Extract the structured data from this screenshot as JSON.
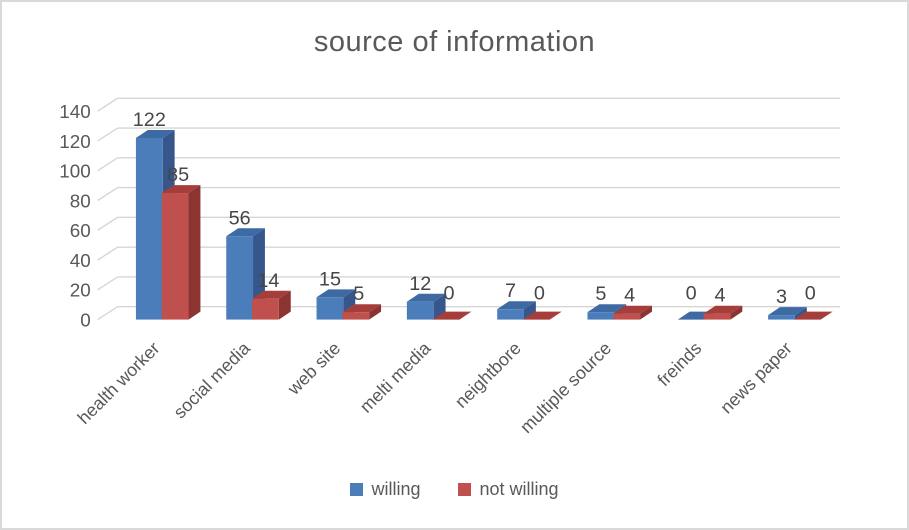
{
  "chart_data": {
    "type": "bar",
    "variant": "3d-clustered-column",
    "title": "source of information",
    "categories": [
      "health worker",
      "social media",
      "web site",
      "melti media",
      "neightbore",
      "multiple source",
      "freinds",
      "news paper"
    ],
    "series": [
      {
        "name": "willing",
        "values": [
          122,
          56,
          15,
          12,
          7,
          5,
          0,
          3
        ],
        "color": "#4B7DBB",
        "color_top": "#3E6AA4",
        "color_side": "#36568C"
      },
      {
        "name": "not willing",
        "values": [
          85,
          14,
          5,
          0,
          0,
          4,
          4,
          0
        ],
        "color": "#C0504D",
        "color_top": "#A53E3B",
        "color_side": "#8B3432"
      }
    ],
    "y_ticks": [
      0,
      20,
      40,
      60,
      80,
      100,
      120,
      140
    ],
    "ylim": [
      0,
      140
    ],
    "grid": true,
    "legend_position": "bottom",
    "colors": {
      "text": "#595959",
      "value_label": "#474747",
      "gridline": "#D6D6D6",
      "frame_border": "#D9D9D9",
      "background": "#FFFFFF"
    }
  }
}
